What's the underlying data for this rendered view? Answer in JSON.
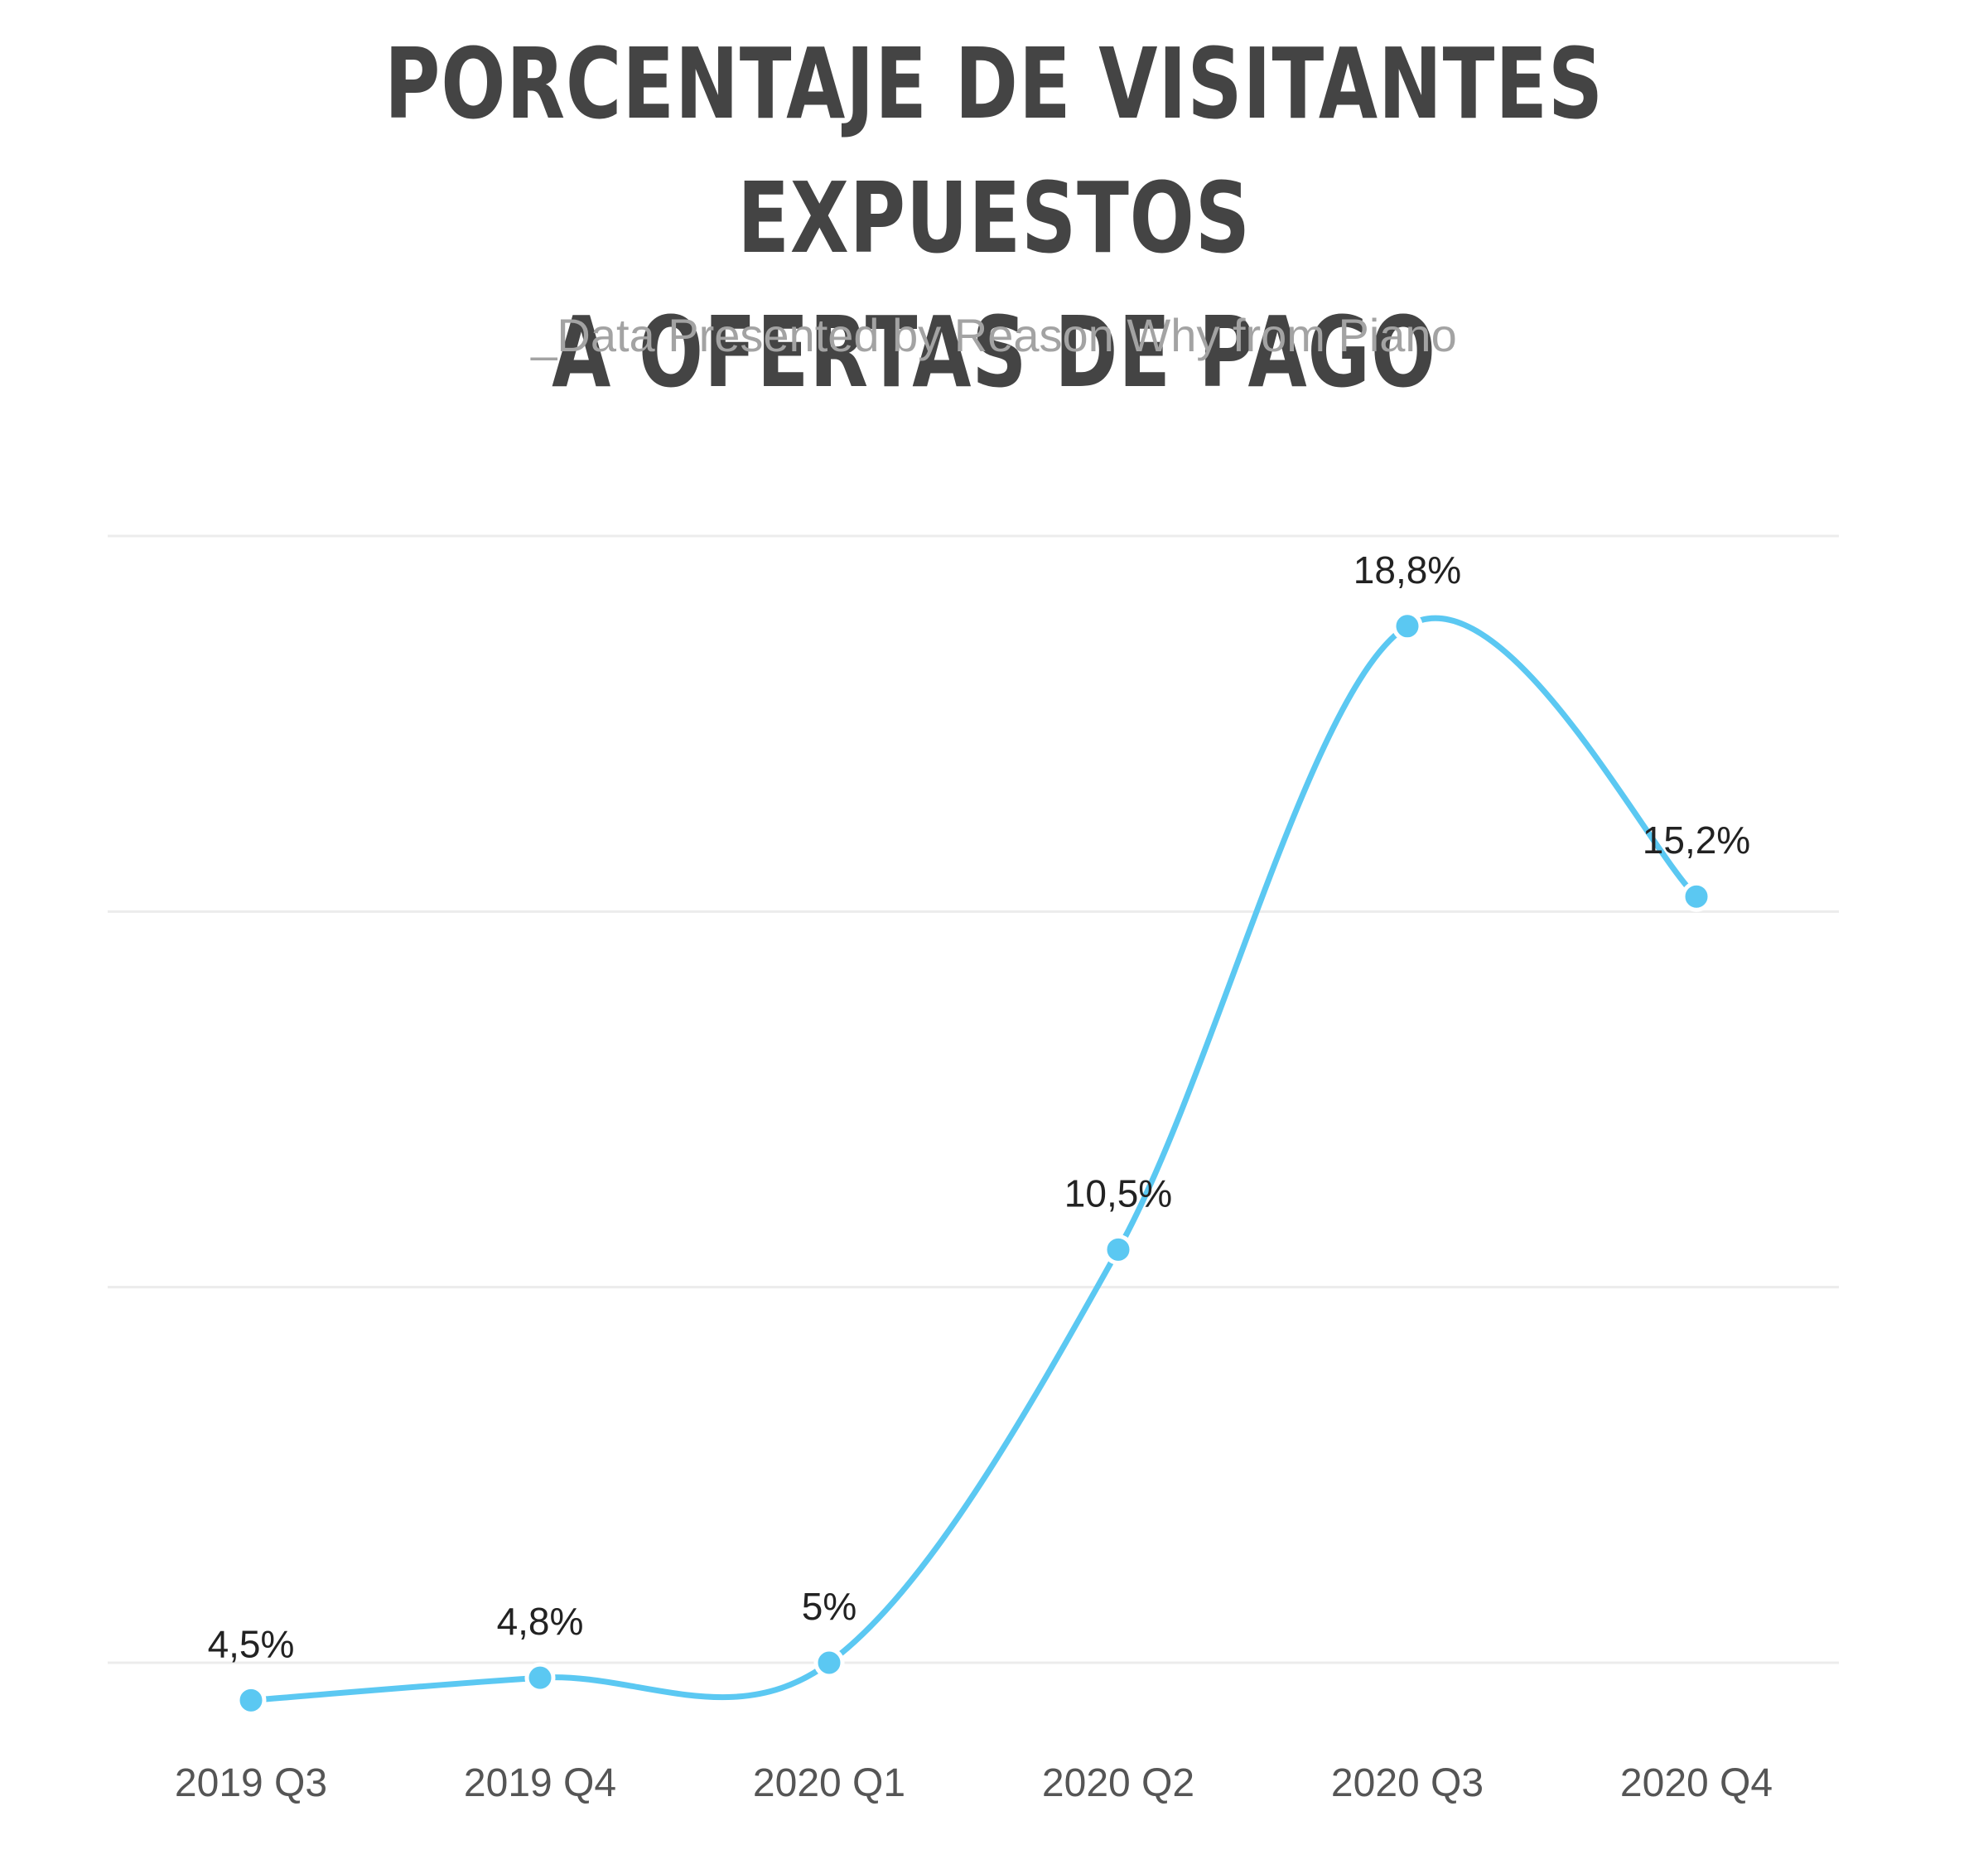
{
  "chart_data": {
    "type": "line",
    "title_lines": [
      "PORCENTAJE DE VISITANTES EXPUESTOS",
      "A OFERTAS DE PAGO"
    ],
    "subtitle": "_Data Presented by Reason Why from Piano",
    "categories": [
      "2019 Q3",
      "2019 Q4",
      "2020 Q1",
      "2020 Q2",
      "2020 Q3",
      "2020 Q4"
    ],
    "series": [
      {
        "values": [
          4.5,
          4.8,
          5,
          10.5,
          18.8,
          15.2
        ],
        "labels": [
          "4,5%",
          "4,8%",
          "5%",
          "10,5%",
          "18,8%",
          "15,2%"
        ]
      }
    ],
    "ylim": [
      5,
      20
    ],
    "grid": true,
    "line_color": "#5bc8f2",
    "smooth": true
  }
}
